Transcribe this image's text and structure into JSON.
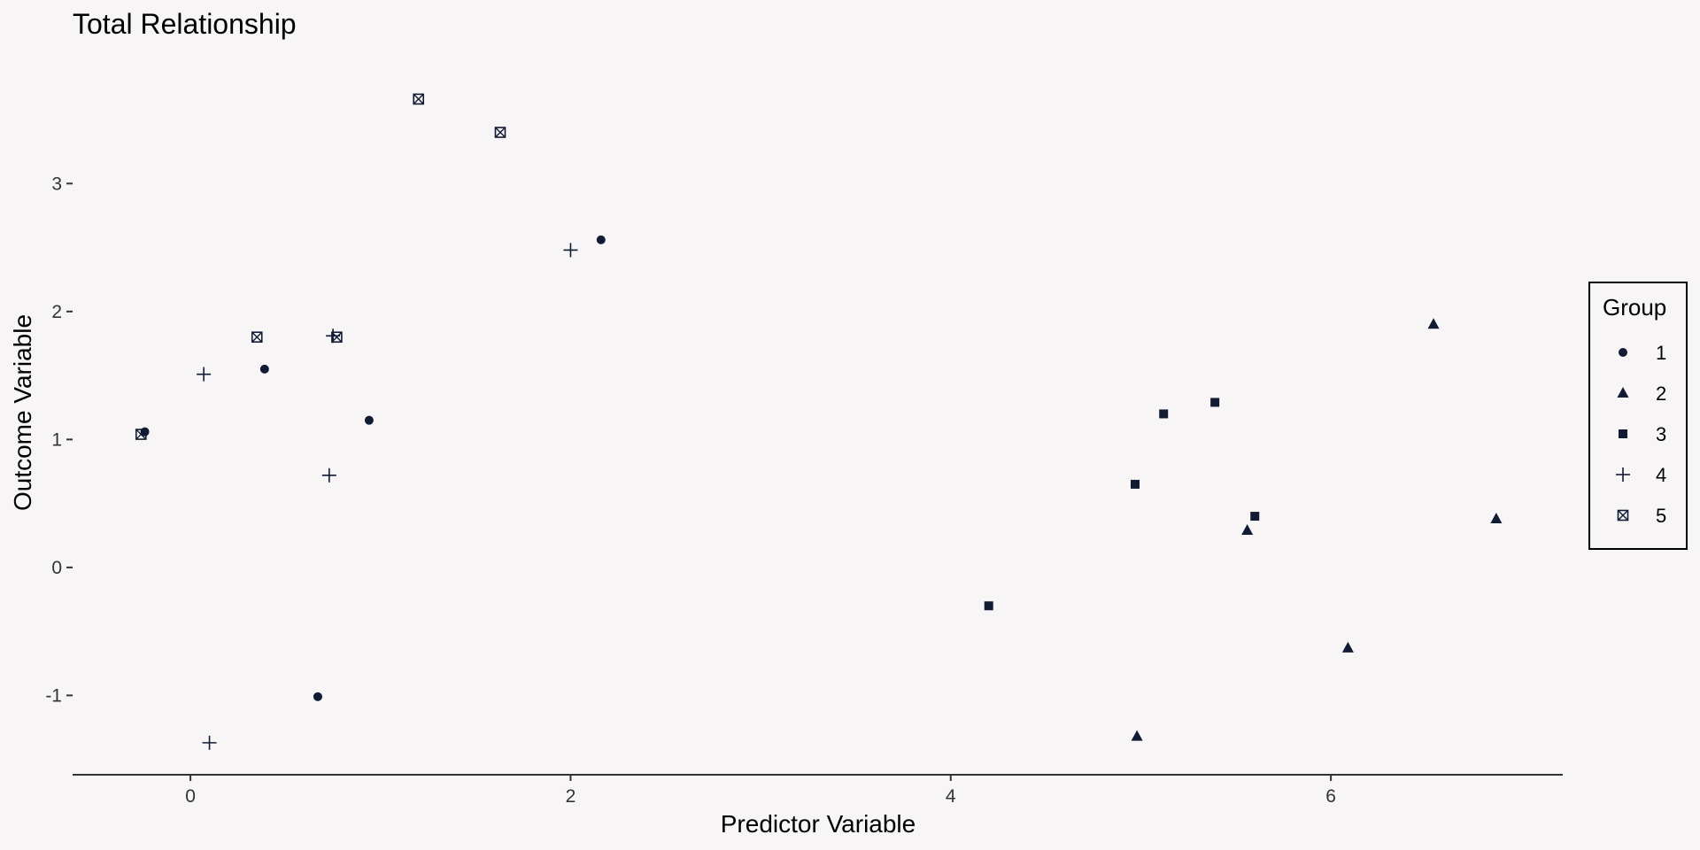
{
  "chart_data": {
    "type": "scatter",
    "title": "Total Relationship",
    "xlabel": "Predictor Variable",
    "ylabel": "Outcome Variable",
    "xlim": [
      -0.62,
      7.22
    ],
    "ylim": [
      -1.62,
      3.95
    ],
    "xticks": [
      0,
      2,
      4,
      6
    ],
    "yticks": [
      -1,
      0,
      1,
      2,
      3
    ],
    "grid": false,
    "legend_title": "Group",
    "legend_placement": "right",
    "marker_color": "#111b33",
    "series": [
      {
        "name": "1",
        "marker": "circle",
        "points": [
          [
            -0.24,
            1.06
          ],
          [
            0.39,
            1.55
          ],
          [
            0.94,
            1.15
          ],
          [
            2.16,
            2.56
          ],
          [
            0.67,
            -1.01
          ]
        ]
      },
      {
        "name": "2",
        "marker": "triangle",
        "points": [
          [
            4.98,
            -1.32
          ],
          [
            5.56,
            0.29
          ],
          [
            6.09,
            -0.63
          ],
          [
            6.54,
            1.9
          ],
          [
            6.87,
            0.38
          ]
        ]
      },
      {
        "name": "3",
        "marker": "square",
        "points": [
          [
            4.2,
            -0.3
          ],
          [
            4.97,
            0.65
          ],
          [
            5.12,
            1.2
          ],
          [
            5.39,
            1.29
          ],
          [
            5.6,
            0.4
          ]
        ]
      },
      {
        "name": "4",
        "marker": "plus",
        "points": [
          [
            0.07,
            1.51
          ],
          [
            0.1,
            -1.37
          ],
          [
            0.73,
            0.72
          ],
          [
            0.75,
            1.81
          ],
          [
            2.0,
            2.48
          ]
        ]
      },
      {
        "name": "5",
        "marker": "boxcross",
        "points": [
          [
            -0.26,
            1.04
          ],
          [
            0.35,
            1.8
          ],
          [
            0.77,
            1.8
          ],
          [
            1.2,
            3.66
          ],
          [
            1.63,
            3.4
          ]
        ]
      }
    ]
  }
}
